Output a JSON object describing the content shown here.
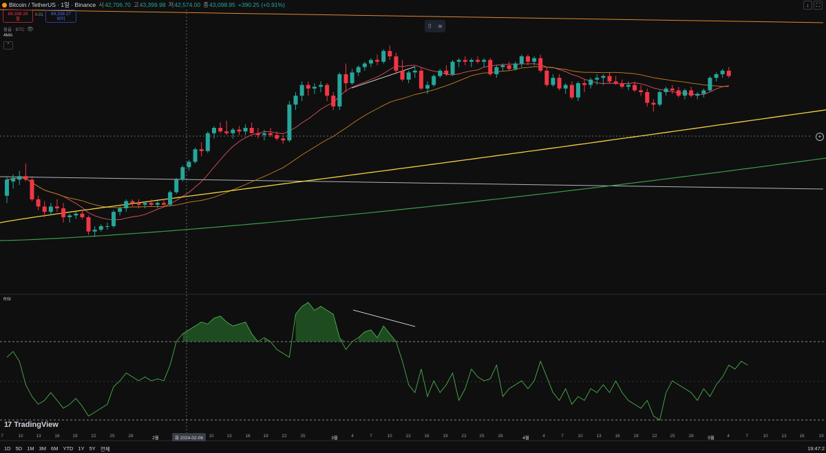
{
  "header": {
    "symbol": "Bitcoin / TetherUS · 1일 · Binance",
    "open_label": "시",
    "open": "42,706.70",
    "high_label": "고",
    "high": "43,399.98",
    "low_label": "저",
    "low": "42,574.00",
    "close_label": "종",
    "close": "43,098.95",
    "change": "+390.25 (+0.91%)"
  },
  "trade": {
    "sell_price": "89,338.26",
    "sell_label": "팔",
    "spread": "0.01",
    "buy_price": "89,338.27",
    "buy_label": "바이"
  },
  "volume_label": "볼륨 · BTC",
  "ma_label": "4MA",
  "rsi_label": "RSI",
  "cursor_date": "화 2024-02-06",
  "brand": "TradingView",
  "timeframes": [
    "1D",
    "5D",
    "1M",
    "3M",
    "6M",
    "YTD",
    "1Y",
    "5Y",
    "전체"
  ],
  "clock": "19:47:2",
  "colors": {
    "up": "#26a69a",
    "down": "#f23645",
    "bg": "#0f0f0f"
  },
  "icons": {
    "download": "download-icon",
    "fullscreen": "fullscreen-icon",
    "drawing": "drawing-tools-icon",
    "add": "plus-icon"
  },
  "chart_data": [
    {
      "type": "candlestick",
      "title": "Bitcoin / TetherUS · 1일 · Binance",
      "x_tick_labels": [
        "7",
        "10",
        "13",
        "16",
        "19",
        "22",
        "25",
        "28",
        "2월",
        "2024-02-06",
        "10",
        "13",
        "16",
        "19",
        "22",
        "25",
        "3월",
        "4",
        "7",
        "10",
        "13",
        "16",
        "19",
        "22",
        "25",
        "28",
        "4월",
        "4",
        "7",
        "10",
        "13",
        "16",
        "19",
        "22",
        "25",
        "28",
        "5월",
        "4",
        "7",
        "10",
        "13",
        "16",
        "19"
      ],
      "candles": [
        [
          0.52,
          0.63,
          0.48,
          0.61
        ],
        [
          0.6,
          0.64,
          0.56,
          0.62
        ],
        [
          0.61,
          0.66,
          0.58,
          0.63
        ],
        [
          0.63,
          0.7,
          0.6,
          0.61
        ],
        [
          0.61,
          0.63,
          0.49,
          0.5
        ],
        [
          0.5,
          0.52,
          0.44,
          0.46
        ],
        [
          0.46,
          0.49,
          0.4,
          0.43
        ],
        [
          0.43,
          0.48,
          0.41,
          0.46
        ],
        [
          0.46,
          0.5,
          0.43,
          0.45
        ],
        [
          0.45,
          0.48,
          0.37,
          0.4
        ],
        [
          0.4,
          0.42,
          0.37,
          0.41
        ],
        [
          0.41,
          0.43,
          0.39,
          0.42
        ],
        [
          0.42,
          0.44,
          0.39,
          0.4
        ],
        [
          0.4,
          0.41,
          0.3,
          0.32
        ],
        [
          0.32,
          0.35,
          0.29,
          0.33
        ],
        [
          0.33,
          0.36,
          0.32,
          0.35
        ],
        [
          0.35,
          0.37,
          0.33,
          0.35
        ],
        [
          0.35,
          0.44,
          0.34,
          0.43
        ],
        [
          0.43,
          0.46,
          0.41,
          0.45
        ],
        [
          0.45,
          0.5,
          0.43,
          0.49
        ],
        [
          0.49,
          0.5,
          0.46,
          0.48
        ],
        [
          0.48,
          0.5,
          0.45,
          0.47
        ],
        [
          0.47,
          0.49,
          0.45,
          0.48
        ],
        [
          0.48,
          0.5,
          0.46,
          0.47
        ],
        [
          0.47,
          0.49,
          0.45,
          0.48
        ],
        [
          0.48,
          0.5,
          0.46,
          0.47
        ],
        [
          0.47,
          0.55,
          0.46,
          0.54
        ],
        [
          0.54,
          0.62,
          0.53,
          0.61
        ],
        [
          0.61,
          0.69,
          0.6,
          0.68
        ],
        [
          0.68,
          0.72,
          0.66,
          0.71
        ],
        [
          0.71,
          0.79,
          0.7,
          0.78
        ],
        [
          0.78,
          0.82,
          0.74,
          0.77
        ],
        [
          0.77,
          0.88,
          0.76,
          0.87
        ],
        [
          0.87,
          0.91,
          0.84,
          0.9
        ],
        [
          0.9,
          0.93,
          0.87,
          0.88
        ],
        [
          0.88,
          0.94,
          0.86,
          0.87
        ],
        [
          0.87,
          0.9,
          0.84,
          0.89
        ],
        [
          0.89,
          0.91,
          0.86,
          0.88
        ],
        [
          0.88,
          0.92,
          0.86,
          0.9
        ],
        [
          0.9,
          0.93,
          0.88,
          0.87
        ],
        [
          0.87,
          0.9,
          0.84,
          0.86
        ],
        [
          0.86,
          0.89,
          0.83,
          0.87
        ],
        [
          0.87,
          0.9,
          0.85,
          0.86
        ],
        [
          0.86,
          0.88,
          0.83,
          0.84
        ],
        [
          0.84,
          0.86,
          0.81,
          0.83
        ],
        [
          0.83,
          1.05,
          0.82,
          1.03
        ],
        [
          1.03,
          1.1,
          1.0,
          1.08
        ],
        [
          1.08,
          1.16,
          1.05,
          1.14
        ],
        [
          1.14,
          1.16,
          1.08,
          1.12
        ],
        [
          1.12,
          1.15,
          1.09,
          1.13
        ],
        [
          1.13,
          1.16,
          1.1,
          1.14
        ],
        [
          1.14,
          1.15,
          1.05,
          1.08
        ],
        [
          1.08,
          1.1,
          1.0,
          1.02
        ],
        [
          1.02,
          1.21,
          1.0,
          1.2
        ],
        [
          1.2,
          1.26,
          1.1,
          1.15
        ],
        [
          1.15,
          1.23,
          1.14,
          1.21
        ],
        [
          1.21,
          1.25,
          1.19,
          1.24
        ],
        [
          1.24,
          1.27,
          1.22,
          1.26
        ],
        [
          1.26,
          1.29,
          1.24,
          1.28
        ],
        [
          1.28,
          1.31,
          1.25,
          1.27
        ],
        [
          1.27,
          1.34,
          1.26,
          1.33
        ],
        [
          1.33,
          1.36,
          1.28,
          1.3
        ],
        [
          1.3,
          1.32,
          1.2,
          1.22
        ],
        [
          1.22,
          1.28,
          1.16,
          1.17
        ],
        [
          1.17,
          1.22,
          1.15,
          1.21
        ],
        [
          1.21,
          1.24,
          1.18,
          1.22
        ],
        [
          1.22,
          1.24,
          1.11,
          1.12
        ],
        [
          1.12,
          1.16,
          1.09,
          1.14
        ],
        [
          1.14,
          1.2,
          1.13,
          1.19
        ],
        [
          1.19,
          1.23,
          1.18,
          1.22
        ],
        [
          1.22,
          1.25,
          1.19,
          1.2
        ],
        [
          1.2,
          1.28,
          1.19,
          1.27
        ],
        [
          1.27,
          1.29,
          1.24,
          1.28
        ],
        [
          1.28,
          1.3,
          1.25,
          1.27
        ],
        [
          1.27,
          1.29,
          1.24,
          1.28
        ],
        [
          1.28,
          1.3,
          1.26,
          1.27
        ],
        [
          1.27,
          1.29,
          1.24,
          1.28
        ],
        [
          1.28,
          1.29,
          1.19,
          1.2
        ],
        [
          1.2,
          1.25,
          1.18,
          1.24
        ],
        [
          1.24,
          1.26,
          1.22,
          1.25
        ],
        [
          1.25,
          1.27,
          1.22,
          1.23
        ],
        [
          1.23,
          1.27,
          1.22,
          1.26
        ],
        [
          1.26,
          1.31,
          1.24,
          1.3
        ],
        [
          1.3,
          1.31,
          1.25,
          1.27
        ],
        [
          1.27,
          1.3,
          1.25,
          1.29
        ],
        [
          1.29,
          1.31,
          1.21,
          1.22
        ],
        [
          1.22,
          1.24,
          1.13,
          1.14
        ],
        [
          1.14,
          1.2,
          1.13,
          1.18
        ],
        [
          1.18,
          1.2,
          1.11,
          1.12
        ],
        [
          1.12,
          1.15,
          1.09,
          1.14
        ],
        [
          1.14,
          1.16,
          1.06,
          1.07
        ],
        [
          1.07,
          1.16,
          1.05,
          1.15
        ],
        [
          1.15,
          1.17,
          1.1,
          1.14
        ],
        [
          1.14,
          1.18,
          1.12,
          1.17
        ],
        [
          1.17,
          1.2,
          1.14,
          1.18
        ],
        [
          1.18,
          1.2,
          1.14,
          1.19
        ],
        [
          1.19,
          1.21,
          1.15,
          1.16
        ],
        [
          1.16,
          1.19,
          1.14,
          1.15
        ],
        [
          1.15,
          1.17,
          1.12,
          1.13
        ],
        [
          1.13,
          1.16,
          1.11,
          1.14
        ],
        [
          1.14,
          1.16,
          1.1,
          1.11
        ],
        [
          1.11,
          1.14,
          1.08,
          1.1
        ],
        [
          1.1,
          1.12,
          1.02,
          1.04
        ],
        [
          1.04,
          1.06,
          0.99,
          1.03
        ],
        [
          1.03,
          1.11,
          1.02,
          1.1
        ],
        [
          1.1,
          1.13,
          1.08,
          1.12
        ],
        [
          1.12,
          1.14,
          1.09,
          1.11
        ],
        [
          1.11,
          1.13,
          1.07,
          1.08
        ],
        [
          1.08,
          1.12,
          1.06,
          1.11
        ],
        [
          1.11,
          1.13,
          1.07,
          1.08
        ],
        [
          1.08,
          1.1,
          1.06,
          1.09
        ],
        [
          1.09,
          1.12,
          1.07,
          1.11
        ],
        [
          1.11,
          1.19,
          1.1,
          1.18
        ],
        [
          1.18,
          1.21,
          1.16,
          1.2
        ],
        [
          1.2,
          1.23,
          1.18,
          1.22
        ],
        [
          1.22,
          1.24,
          1.18,
          1.19
        ]
      ],
      "rsi": [
        62,
        65,
        60,
        48,
        42,
        38,
        40,
        44,
        40,
        36,
        38,
        41,
        37,
        32,
        34,
        36,
        38,
        47,
        50,
        54,
        52,
        50,
        52,
        50,
        51,
        50,
        58,
        70,
        74,
        76,
        78,
        80,
        79,
        82,
        83,
        80,
        78,
        79,
        80,
        74,
        70,
        72,
        70,
        66,
        64,
        62,
        84,
        88,
        90,
        86,
        88,
        86,
        84,
        72,
        66,
        70,
        72,
        75,
        76,
        72,
        78,
        74,
        70,
        60,
        48,
        44,
        56,
        42,
        50,
        44,
        48,
        54,
        40,
        46,
        56,
        52,
        50,
        51,
        58,
        42,
        46,
        48,
        50,
        46,
        50,
        60,
        52,
        44,
        40,
        46,
        38,
        42,
        40,
        46,
        44,
        48,
        44,
        50,
        44,
        40,
        38,
        36,
        40,
        32,
        30,
        44,
        50,
        48,
        46,
        44,
        40,
        46,
        42,
        48,
        52,
        58,
        56,
        60,
        58
      ]
    }
  ]
}
